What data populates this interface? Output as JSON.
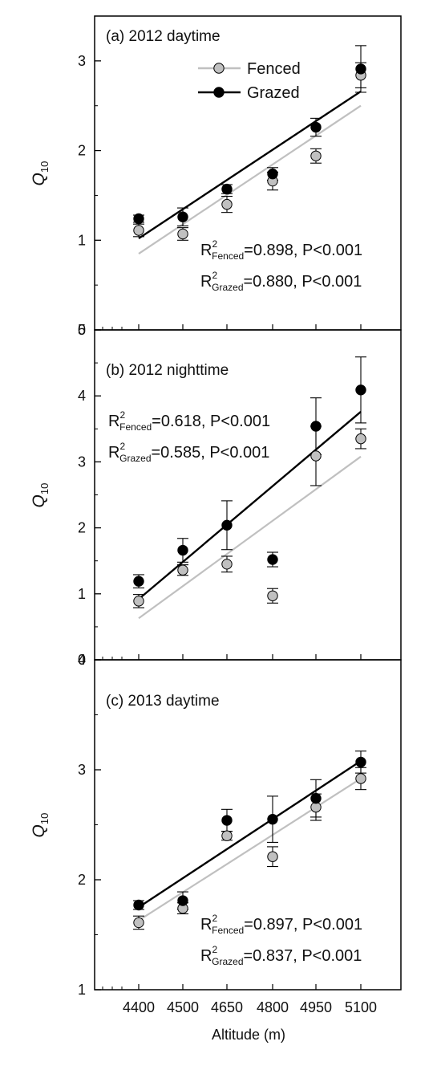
{
  "chart_data": [
    {
      "type": "scatter",
      "title": "(a) 2012 daytime",
      "ylabel": "Q",
      "ylabel_sub": "10",
      "ylim": [
        0,
        3.5
      ],
      "yticks": [
        0,
        1,
        2,
        3
      ],
      "x": [
        4400,
        4500,
        4650,
        4800,
        4950,
        5100
      ],
      "series": [
        {
          "name": "Fenced",
          "color": "#c0c0c0",
          "values": [
            1.11,
            1.07,
            1.4,
            1.66,
            1.94,
            2.84
          ],
          "errors": [
            0.07,
            0.07,
            0.09,
            0.1,
            0.08,
            0.14
          ],
          "fit": [
            0.85,
            2.5
          ]
        },
        {
          "name": "Grazed",
          "color": "#000000",
          "values": [
            1.24,
            1.26,
            1.57,
            1.74,
            2.26,
            2.91
          ],
          "errors": [
            0.04,
            0.1,
            0.05,
            0.07,
            0.1,
            0.26
          ],
          "fit": [
            1.02,
            2.66
          ]
        }
      ],
      "legend": {
        "position": "top-center",
        "entries": [
          "Fenced",
          "Grazed"
        ]
      },
      "stats": [
        {
          "pre": "R",
          "sup": "2",
          "sub": "Fenced",
          "post": "=0.898, P<0.001"
        },
        {
          "pre": "R",
          "sup": "2",
          "sub": "Grazed",
          "post": "=0.880, P<0.001"
        }
      ]
    },
    {
      "type": "scatter",
      "title": "(b) 2012 nighttime",
      "ylabel": "Q",
      "ylabel_sub": "10",
      "ylim": [
        0,
        5
      ],
      "yticks": [
        0,
        1,
        2,
        3,
        4,
        5
      ],
      "x": [
        4400,
        4500,
        4650,
        4800,
        4950,
        5100
      ],
      "series": [
        {
          "name": "Fenced",
          "color": "#c0c0c0",
          "values": [
            0.89,
            1.36,
            1.45,
            0.97,
            3.09,
            3.35
          ],
          "errors": [
            0.1,
            0.08,
            0.12,
            0.11,
            0.45,
            0.15
          ],
          "fit": [
            0.63,
            3.08
          ]
        },
        {
          "name": "Grazed",
          "color": "#000000",
          "values": [
            1.19,
            1.66,
            2.04,
            1.52,
            3.54,
            4.09
          ],
          "errors": [
            0.1,
            0.18,
            0.37,
            0.11,
            0.43,
            0.5
          ],
          "fit": [
            0.92,
            3.76
          ]
        }
      ],
      "stats": [
        {
          "pre": "R",
          "sup": "2",
          "sub": "Fenced",
          "post": "=0.618, P<0.001"
        },
        {
          "pre": "R",
          "sup": "2",
          "sub": "Grazed",
          "post": "=0.585, P<0.001"
        }
      ]
    },
    {
      "type": "scatter",
      "title": "(c) 2013 daytime",
      "ylabel": "Q",
      "ylabel_sub": "10",
      "xlabel": "Altitude (m)",
      "xticks": [
        "4400",
        "4500",
        "4650",
        "4800",
        "4950",
        "5100"
      ],
      "ylim": [
        1,
        4
      ],
      "yticks": [
        1,
        2,
        3,
        4
      ],
      "x": [
        4400,
        4500,
        4650,
        4800,
        4950,
        5100
      ],
      "series": [
        {
          "name": "Fenced",
          "color": "#c0c0c0",
          "values": [
            1.61,
            1.74,
            2.4,
            2.21,
            2.66,
            2.92
          ],
          "errors": [
            0.06,
            0.05,
            0.04,
            0.09,
            0.12,
            0.1
          ],
          "fit": [
            1.63,
            2.92
          ]
        },
        {
          "name": "Grazed",
          "color": "#000000",
          "values": [
            1.77,
            1.81,
            2.54,
            2.55,
            2.74,
            3.07
          ],
          "errors": [
            0.04,
            0.08,
            0.1,
            0.21,
            0.17,
            0.1
          ],
          "fit": [
            1.75,
            3.08
          ]
        }
      ],
      "stats": [
        {
          "pre": "R",
          "sup": "2",
          "sub": "Fenced",
          "post": "=0.897, P<0.001"
        },
        {
          "pre": "R",
          "sup": "2",
          "sub": "Grazed",
          "post": "=0.837, P<0.001"
        }
      ]
    }
  ]
}
